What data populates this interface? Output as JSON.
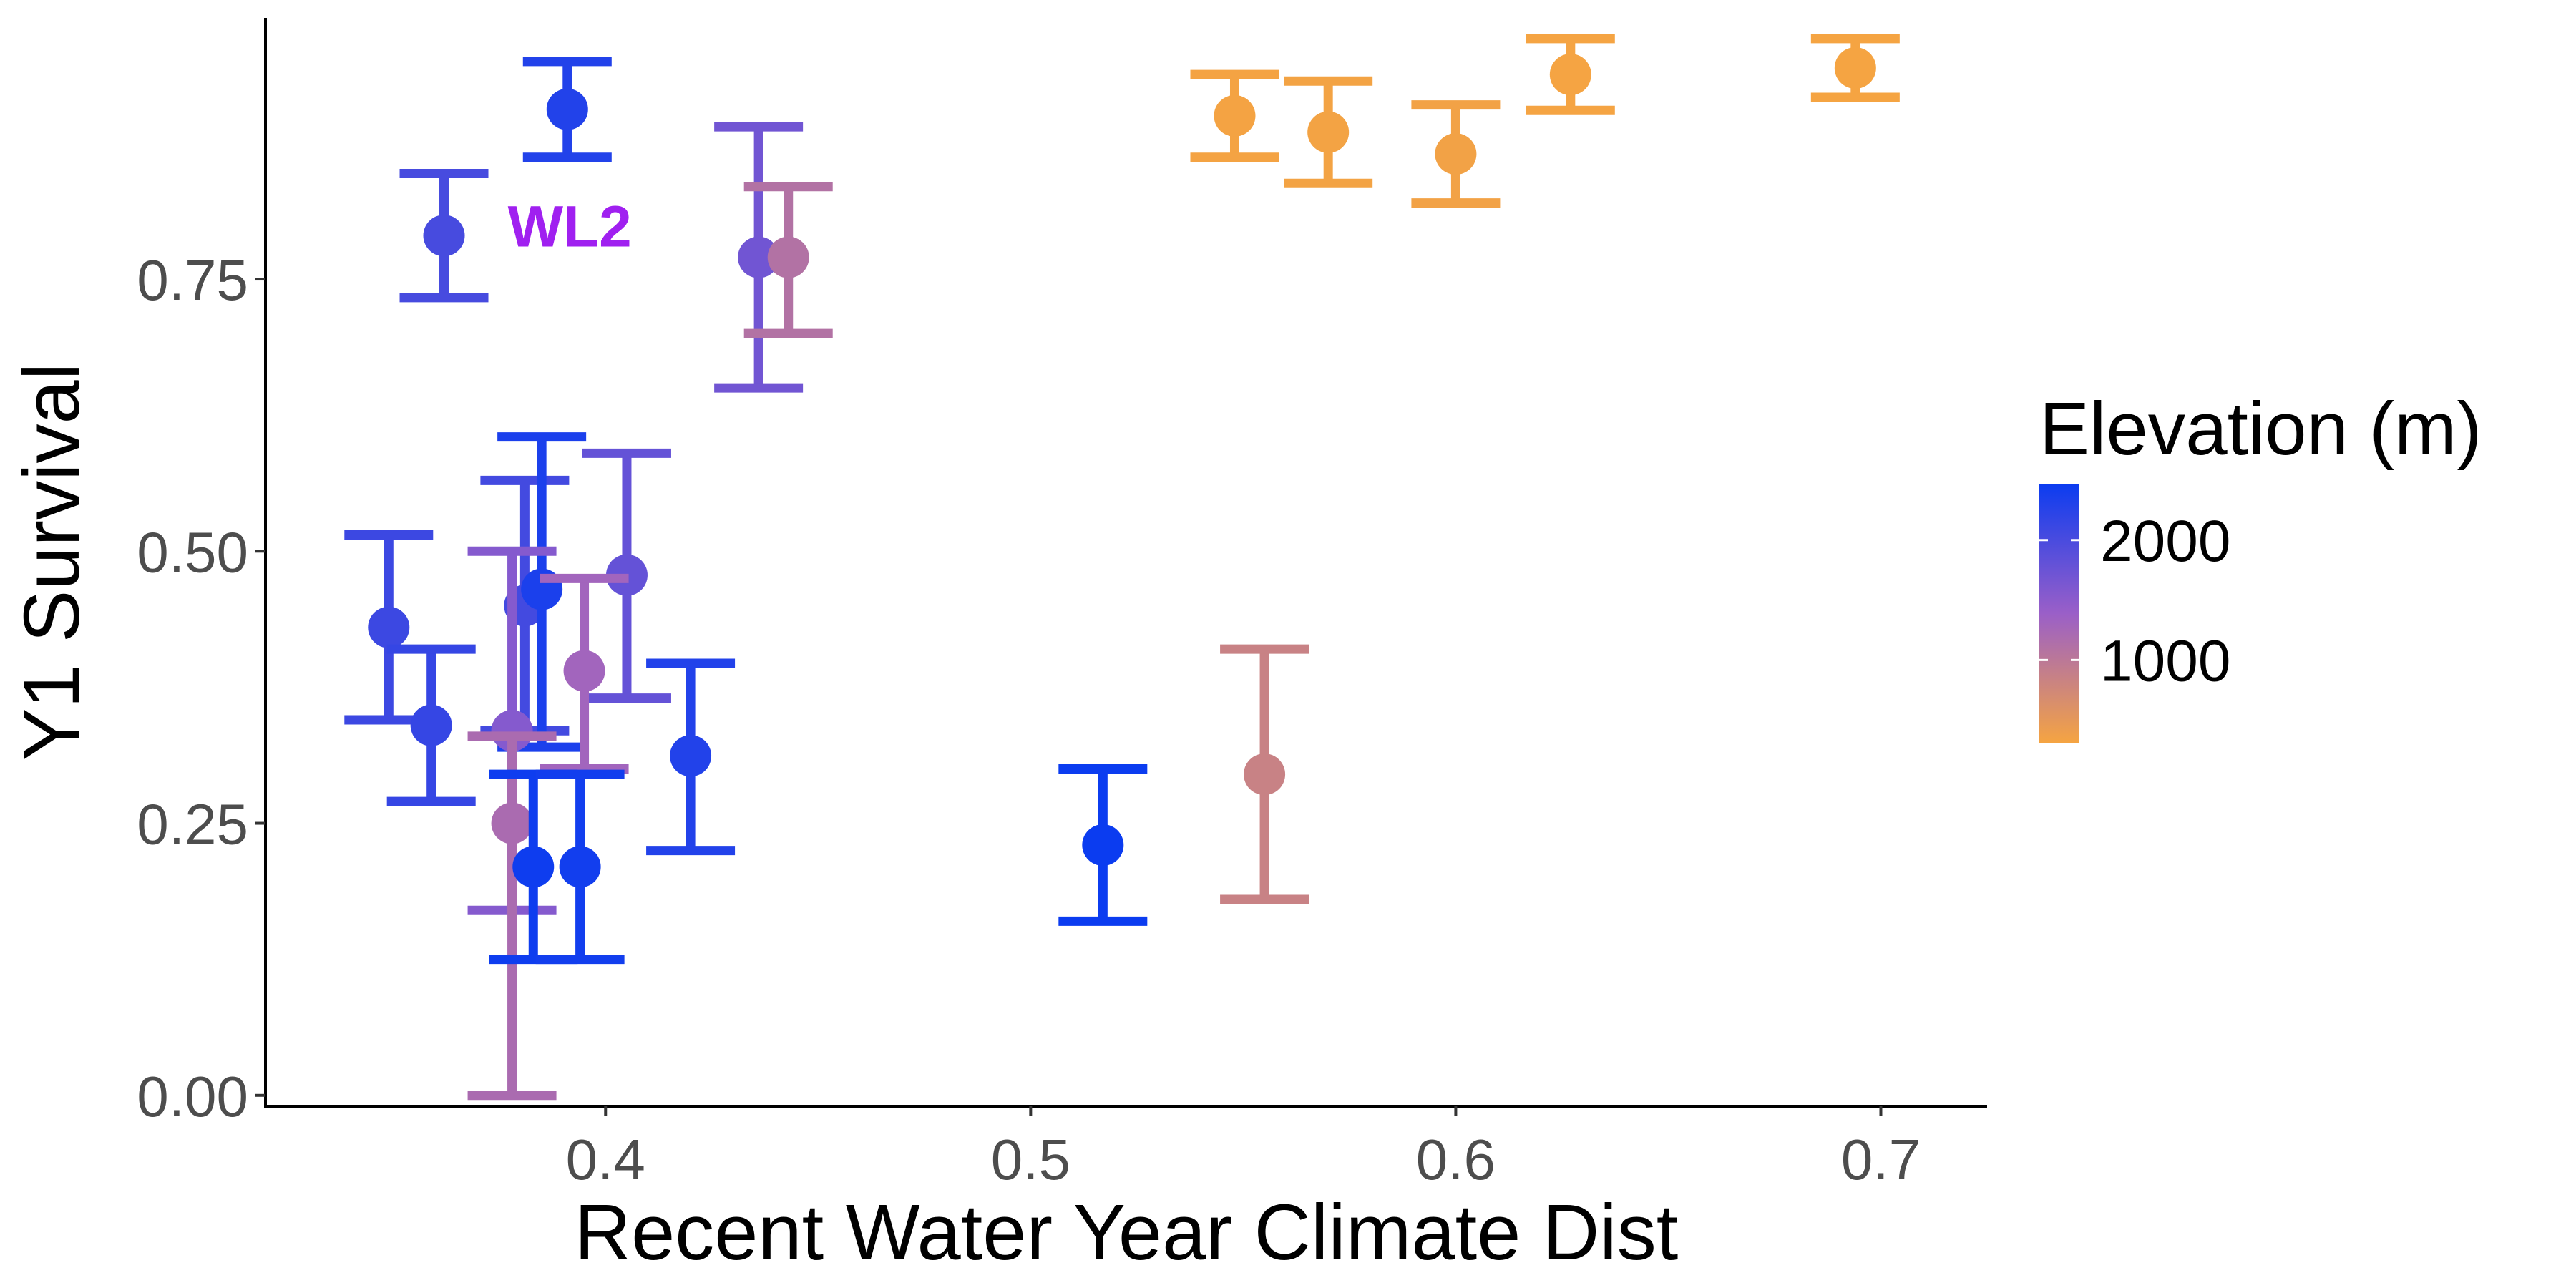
{
  "chart_data": {
    "type": "scatter",
    "xlabel": "Recent Water Year Climate Dist",
    "ylabel": "Y1 Survival",
    "xlim": [
      0.32,
      0.725
    ],
    "ylim": [
      -0.01,
      0.99
    ],
    "x_ticks": [
      0.4,
      0.5,
      0.6,
      0.7
    ],
    "x_tick_labels": [
      "0.4",
      "0.5",
      "0.6",
      "0.7"
    ],
    "y_ticks": [
      0.0,
      0.25,
      0.5,
      0.75
    ],
    "y_tick_labels": [
      "0.00",
      "0.25",
      "0.50",
      "0.75"
    ],
    "grid": false,
    "error_bars": true,
    "legend": {
      "title": "Elevation (m)",
      "type": "colorbar",
      "placement": "right",
      "range": [
        310,
        2470
      ],
      "breaks": [
        2000,
        1000
      ],
      "break_labels": [
        "2000",
        "1000"
      ],
      "color_high": "#0b3cf0",
      "color_mid": "#9a5fc8",
      "color_low": "#f5a442"
    },
    "annotations": [
      {
        "text": "WL2",
        "x": 0.377,
        "y": 0.78,
        "color": "#a020f0"
      }
    ],
    "points": [
      {
        "x": 0.362,
        "y": 0.79,
        "ymin": 0.733,
        "ymax": 0.847,
        "elevation": 2020
      },
      {
        "x": 0.391,
        "y": 0.906,
        "ymin": 0.862,
        "ymax": 0.95,
        "elevation": 2300
      },
      {
        "x": 0.436,
        "y": 0.77,
        "ymin": 0.65,
        "ymax": 0.89,
        "elevation": 1700
      },
      {
        "x": 0.443,
        "y": 0.77,
        "ymin": 0.7,
        "ymax": 0.835,
        "elevation": 1100
      },
      {
        "x": 0.349,
        "y": 0.43,
        "ymin": 0.345,
        "ymax": 0.515,
        "elevation": 2100
      },
      {
        "x": 0.359,
        "y": 0.34,
        "ymin": 0.27,
        "ymax": 0.41,
        "elevation": 2150
      },
      {
        "x": 0.381,
        "y": 0.45,
        "ymin": 0.335,
        "ymax": 0.565,
        "elevation": 2050
      },
      {
        "x": 0.385,
        "y": 0.465,
        "ymin": 0.32,
        "ymax": 0.605,
        "elevation": 2350
      },
      {
        "x": 0.405,
        "y": 0.478,
        "ymin": 0.365,
        "ymax": 0.59,
        "elevation": 1800
      },
      {
        "x": 0.395,
        "y": 0.39,
        "ymin": 0.3,
        "ymax": 0.475,
        "elevation": 1300
      },
      {
        "x": 0.378,
        "y": 0.335,
        "ymin": 0.17,
        "ymax": 0.5,
        "elevation": 1550
      },
      {
        "x": 0.378,
        "y": 0.25,
        "ymin": 0.0,
        "ymax": 0.33,
        "elevation": 1200
      },
      {
        "x": 0.383,
        "y": 0.21,
        "ymin": 0.125,
        "ymax": 0.295,
        "elevation": 2450
      },
      {
        "x": 0.394,
        "y": 0.21,
        "ymin": 0.125,
        "ymax": 0.295,
        "elevation": 2420
      },
      {
        "x": 0.42,
        "y": 0.312,
        "ymin": 0.225,
        "ymax": 0.397,
        "elevation": 2300
      },
      {
        "x": 0.517,
        "y": 0.23,
        "ymin": 0.16,
        "ymax": 0.3,
        "elevation": 2470
      },
      {
        "x": 0.555,
        "y": 0.295,
        "ymin": 0.18,
        "ymax": 0.41,
        "elevation": 850
      },
      {
        "x": 0.548,
        "y": 0.9,
        "ymin": 0.862,
        "ymax": 0.938,
        "elevation": 320
      },
      {
        "x": 0.57,
        "y": 0.885,
        "ymin": 0.838,
        "ymax": 0.932,
        "elevation": 330
      },
      {
        "x": 0.6,
        "y": 0.865,
        "ymin": 0.82,
        "ymax": 0.91,
        "elevation": 340
      },
      {
        "x": 0.627,
        "y": 0.938,
        "ymin": 0.905,
        "ymax": 0.971,
        "elevation": 315
      },
      {
        "x": 0.694,
        "y": 0.944,
        "ymin": 0.917,
        "ymax": 0.971,
        "elevation": 310
      }
    ]
  }
}
